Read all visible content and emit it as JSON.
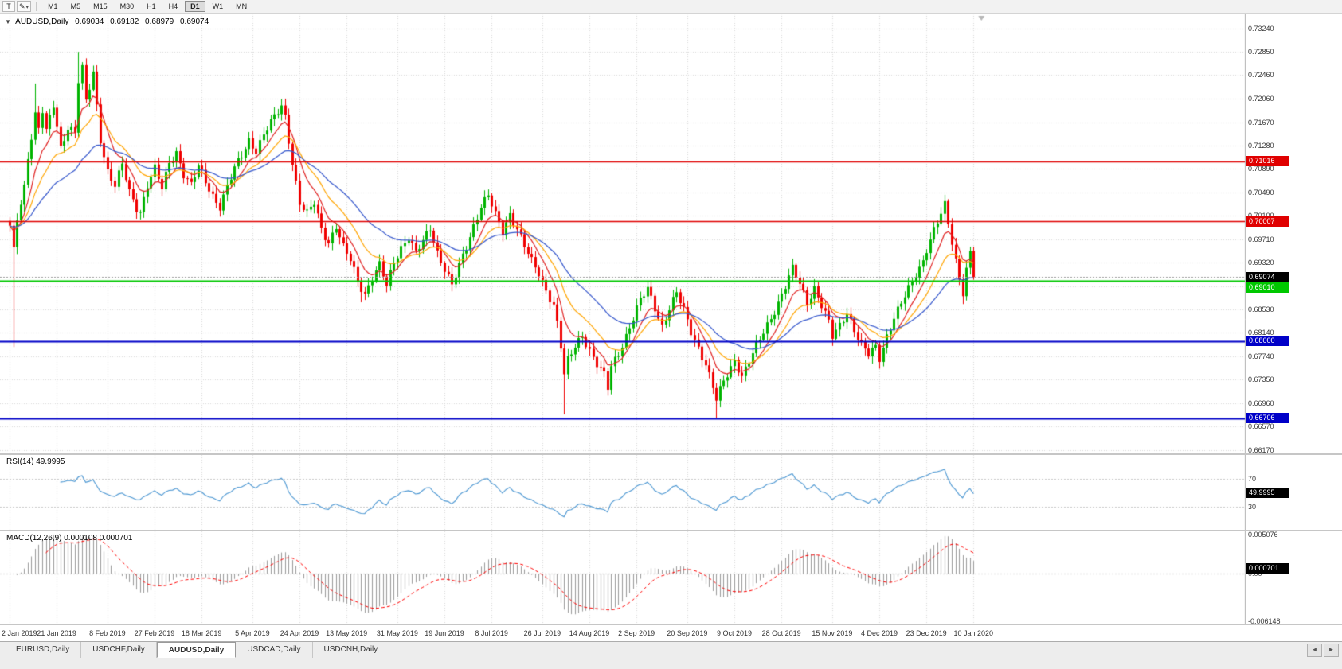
{
  "toolbar": {
    "template_button_label": "T",
    "drawing_tool_icon": "✎",
    "caret_icon": "▾",
    "timeframes": [
      "M1",
      "M5",
      "M15",
      "M30",
      "H1",
      "H4",
      "D1",
      "W1",
      "MN"
    ],
    "active_timeframe": "D1"
  },
  "chart": {
    "collapse_icon": "▼",
    "symbol_header": "AUDUSD,Daily",
    "ohlc": {
      "open": "0.69034",
      "high": "0.69182",
      "low": "0.68979",
      "close": "0.69074"
    },
    "price_ticks": [
      "0.73240",
      "0.72850",
      "0.72460",
      "0.72060",
      "0.71670",
      "0.71280",
      "0.70890",
      "0.70490",
      "0.70100",
      "0.69710",
      "0.69320",
      "0.68920",
      "0.68530",
      "0.68140",
      "0.67740",
      "0.67350",
      "0.66960",
      "0.66570",
      "0.66170"
    ],
    "levels": [
      {
        "price": 0.71016,
        "label": "0.71016",
        "color": "#E00000"
      },
      {
        "price": 0.70007,
        "label": "0.70007",
        "color": "#E00000"
      },
      {
        "price": 0.6901,
        "label": "0.69010",
        "color": "#00C800"
      },
      {
        "price": 0.68,
        "label": "0.68000",
        "color": "#0000C8"
      },
      {
        "price": 0.66706,
        "label": "0.66706",
        "color": "#0000C8"
      }
    ],
    "current_price": {
      "value": 0.69074,
      "label": "0.69074",
      "box_color": "#000000"
    },
    "date_axis": [
      {
        "label": "2 Jan 2019",
        "day": 0
      },
      {
        "label": "21 Jan 2019",
        "day": 13
      },
      {
        "label": "8 Feb 2019",
        "day": 27
      },
      {
        "label": "27 Feb 2019",
        "day": 40
      },
      {
        "label": "18 Mar 2019",
        "day": 53
      },
      {
        "label": "5 Apr 2019",
        "day": 67
      },
      {
        "label": "24 Apr 2019",
        "day": 80
      },
      {
        "label": "13 May 2019",
        "day": 93
      },
      {
        "label": "31 May 2019",
        "day": 107
      },
      {
        "label": "19 Jun 2019",
        "day": 120
      },
      {
        "label": "8 Jul 2019",
        "day": 133
      },
      {
        "label": "26 Jul 2019",
        "day": 147
      },
      {
        "label": "14 Aug 2019",
        "day": 160
      },
      {
        "label": "2 Sep 2019",
        "day": 173
      },
      {
        "label": "20 Sep 2019",
        "day": 187
      },
      {
        "label": "9 Oct 2019",
        "day": 200
      },
      {
        "label": "28 Oct 2019",
        "day": 213
      },
      {
        "label": "15 Nov 2019",
        "day": 227
      },
      {
        "label": "4 Dec 2019",
        "day": 240
      },
      {
        "label": "23 Dec 2019",
        "day": 253
      },
      {
        "label": "10 Jan 2020",
        "day": 266
      }
    ]
  },
  "indicators": {
    "rsi": {
      "header": "RSI(14) 49.9995",
      "period": 14,
      "upper_label": "70",
      "lower_label": "30",
      "upper_level": 70,
      "lower_level": 30,
      "value": 49.9995,
      "value_box": "49.9995",
      "line_color": "#4A96D2"
    },
    "macd": {
      "header": "MACD(12,26,9) 0.000108 0.000701",
      "fast": 12,
      "slow": 26,
      "signal_period": 9,
      "axis_max_label": "0.005076",
      "axis_zero_label": "0.00",
      "axis_min_label": "-0.006148",
      "axis_max": 0.005076,
      "axis_min": -0.006148,
      "value": 0.000701,
      "value_box": "0.000701",
      "hist_color": "#9A9A9A",
      "signal_color": "#FF0000"
    }
  },
  "chart_data": {
    "type": "candlestick",
    "symbol": "AUDUSD",
    "timeframe": "Daily",
    "x_range": [
      "2 Jan 2019",
      "10 Jan 2020"
    ],
    "days": 267,
    "price_axis_range": [
      0.6617,
      0.7324
    ],
    "up_color": "#00B400",
    "down_color": "#F00000",
    "moving_averages": [
      {
        "type": "ema",
        "period": 8,
        "color": "#E02020"
      },
      {
        "type": "ema",
        "period": 16,
        "color": "#FFA500"
      },
      {
        "type": "ema",
        "period": 34,
        "color": "#3355CC"
      }
    ],
    "close_waypoints": [
      [
        0,
        0.699
      ],
      [
        1,
        0.695
      ],
      [
        2,
        0.7005
      ],
      [
        4,
        0.706
      ],
      [
        5,
        0.711
      ],
      [
        7,
        0.718
      ],
      [
        8,
        0.7155
      ],
      [
        9,
        0.7185
      ],
      [
        10,
        0.715
      ],
      [
        12,
        0.7195
      ],
      [
        14,
        0.7125
      ],
      [
        16,
        0.716
      ],
      [
        18,
        0.715
      ],
      [
        19,
        0.7235
      ],
      [
        20,
        0.7255
      ],
      [
        21,
        0.72
      ],
      [
        22,
        0.7225
      ],
      [
        23,
        0.725
      ],
      [
        24,
        0.7195
      ],
      [
        25,
        0.714
      ],
      [
        27,
        0.7085
      ],
      [
        29,
        0.706
      ],
      [
        31,
        0.7095
      ],
      [
        33,
        0.705
      ],
      [
        35,
        0.7025
      ],
      [
        36,
        0.7018
      ],
      [
        38,
        0.7062
      ],
      [
        40,
        0.7088
      ],
      [
        42,
        0.7055
      ],
      [
        44,
        0.71
      ],
      [
        46,
        0.7118
      ],
      [
        48,
        0.708
      ],
      [
        50,
        0.706
      ],
      [
        52,
        0.7092
      ],
      [
        54,
        0.7068
      ],
      [
        56,
        0.7045
      ],
      [
        58,
        0.7026
      ],
      [
        60,
        0.7058
      ],
      [
        62,
        0.7088
      ],
      [
        64,
        0.7112
      ],
      [
        66,
        0.7138
      ],
      [
        68,
        0.712
      ],
      [
        70,
        0.7145
      ],
      [
        72,
        0.7165
      ],
      [
        74,
        0.7185
      ],
      [
        75,
        0.7195
      ],
      [
        76,
        0.7178
      ],
      [
        78,
        0.71
      ],
      [
        80,
        0.703
      ],
      [
        82,
        0.7012
      ],
      [
        84,
        0.7032
      ],
      [
        86,
        0.699
      ],
      [
        88,
        0.6966
      ],
      [
        90,
        0.6992
      ],
      [
        92,
        0.6955
      ],
      [
        94,
        0.6936
      ],
      [
        96,
        0.6902
      ],
      [
        98,
        0.688
      ],
      [
        100,
        0.6906
      ],
      [
        102,
        0.6926
      ],
      [
        104,
        0.6892
      ],
      [
        106,
        0.6934
      ],
      [
        108,
        0.6958
      ],
      [
        110,
        0.6975
      ],
      [
        112,
        0.6946
      ],
      [
        114,
        0.6966
      ],
      [
        116,
        0.699
      ],
      [
        118,
        0.695
      ],
      [
        120,
        0.6922
      ],
      [
        122,
        0.6892
      ],
      [
        124,
        0.6925
      ],
      [
        126,
        0.6958
      ],
      [
        128,
        0.6994
      ],
      [
        130,
        0.7028
      ],
      [
        132,
        0.7044
      ],
      [
        134,
        0.701
      ],
      [
        136,
        0.6982
      ],
      [
        138,
        0.7014
      ],
      [
        140,
        0.699
      ],
      [
        142,
        0.696
      ],
      [
        144,
        0.6932
      ],
      [
        146,
        0.6912
      ],
      [
        148,
        0.6886
      ],
      [
        150,
        0.6862
      ],
      [
        151,
        0.6832
      ],
      [
        152,
        0.6792
      ],
      [
        153,
        0.6742
      ],
      [
        154,
        0.6766
      ],
      [
        156,
        0.679
      ],
      [
        158,
        0.681
      ],
      [
        160,
        0.6786
      ],
      [
        162,
        0.6762
      ],
      [
        164,
        0.6742
      ],
      [
        165,
        0.672
      ],
      [
        166,
        0.6756
      ],
      [
        168,
        0.678
      ],
      [
        170,
        0.681
      ],
      [
        172,
        0.684
      ],
      [
        174,
        0.6868
      ],
      [
        176,
        0.6886
      ],
      [
        178,
        0.6856
      ],
      [
        180,
        0.6826
      ],
      [
        182,
        0.6856
      ],
      [
        184,
        0.688
      ],
      [
        186,
        0.685
      ],
      [
        188,
        0.6816
      ],
      [
        190,
        0.679
      ],
      [
        192,
        0.6762
      ],
      [
        194,
        0.6722
      ],
      [
        195,
        0.67
      ],
      [
        197,
        0.6732
      ],
      [
        199,
        0.6756
      ],
      [
        200,
        0.677
      ],
      [
        202,
        0.6742
      ],
      [
        204,
        0.6765
      ],
      [
        206,
        0.679
      ],
      [
        208,
        0.6815
      ],
      [
        210,
        0.684
      ],
      [
        212,
        0.6865
      ],
      [
        214,
        0.6892
      ],
      [
        216,
        0.692
      ],
      [
        218,
        0.6896
      ],
      [
        220,
        0.6866
      ],
      [
        222,
        0.689
      ],
      [
        224,
        0.686
      ],
      [
        226,
        0.683
      ],
      [
        227,
        0.6806
      ],
      [
        229,
        0.6826
      ],
      [
        231,
        0.685
      ],
      [
        233,
        0.682
      ],
      [
        235,
        0.6792
      ],
      [
        237,
        0.6776
      ],
      [
        239,
        0.679
      ],
      [
        240,
        0.6772
      ],
      [
        242,
        0.681
      ],
      [
        244,
        0.684
      ],
      [
        246,
        0.6862
      ],
      [
        248,
        0.6886
      ],
      [
        250,
        0.6912
      ],
      [
        252,
        0.6936
      ],
      [
        253,
        0.6956
      ],
      [
        255,
        0.6986
      ],
      [
        257,
        0.7012
      ],
      [
        258,
        0.7026
      ],
      [
        259,
        0.6996
      ],
      [
        260,
        0.6966
      ],
      [
        261,
        0.6936
      ],
      [
        262,
        0.6906
      ],
      [
        263,
        0.6884
      ],
      [
        264,
        0.6922
      ],
      [
        265,
        0.6948
      ],
      [
        266,
        0.69074
      ]
    ],
    "spikes": [
      {
        "day": 1,
        "low": 0.679
      },
      {
        "day": 7,
        "high": 0.7232
      },
      {
        "day": 19,
        "high": 0.7285
      },
      {
        "day": 23,
        "high": 0.7262
      },
      {
        "day": 36,
        "low": 0.7004
      },
      {
        "day": 75,
        "high": 0.7206
      },
      {
        "day": 97,
        "low": 0.6865
      },
      {
        "day": 132,
        "high": 0.7048
      },
      {
        "day": 153,
        "low": 0.6677
      },
      {
        "day": 165,
        "low": 0.6712
      },
      {
        "day": 195,
        "low": 0.66706
      },
      {
        "day": 258,
        "high": 0.7032
      },
      {
        "day": 263,
        "low": 0.6862
      }
    ]
  },
  "tabbar": {
    "tabs": [
      "EURUSD,Daily",
      "USDCHF,Daily",
      "AUDUSD,Daily",
      "USDCAD,Daily",
      "USDCNH,Daily"
    ],
    "active": "AUDUSD,Daily",
    "scroll_left_icon": "◄",
    "scroll_right_icon": "►"
  }
}
